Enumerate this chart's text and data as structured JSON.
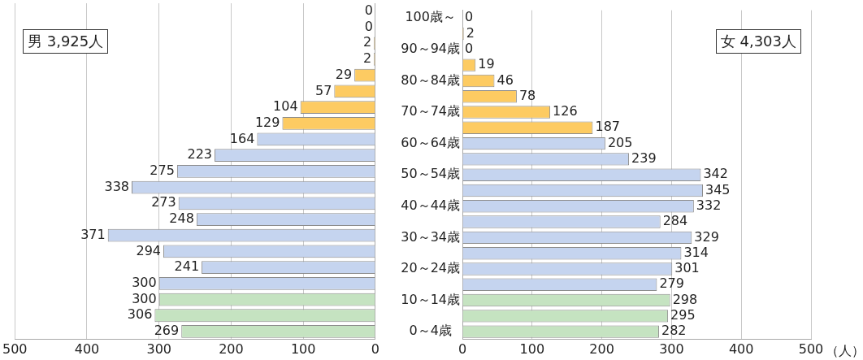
{
  "chart_data": [
    {
      "type": "bar",
      "orientation": "horizontal",
      "title": "男 3,925人",
      "categories": [
        null,
        null,
        null,
        null,
        null,
        null,
        null,
        null,
        null,
        null,
        null,
        null,
        null,
        null,
        null,
        null,
        null,
        null,
        null,
        null,
        null
      ],
      "values": [
        0,
        0,
        2,
        2,
        29,
        57,
        104,
        129,
        164,
        223,
        275,
        338,
        273,
        248,
        371,
        294,
        241,
        300,
        300,
        306,
        269
      ],
      "colors": [
        "#fdcb62",
        "#fdcb62",
        "#fdcb62",
        "#fdcb62",
        "#fdcb62",
        "#fdcb62",
        "#fdcb62",
        "#fdcb62",
        "#c5d4ef",
        "#c5d4ef",
        "#c5d4ef",
        "#c5d4ef",
        "#c5d4ef",
        "#c5d4ef",
        "#c5d4ef",
        "#c5d4ef",
        "#c5d4ef",
        "#c5d4ef",
        "#c5e3c1",
        "#c5e3c1",
        "#c5e3c1"
      ],
      "xlim": [
        500,
        0
      ],
      "xticks": [
        500,
        400,
        300,
        200,
        100,
        0
      ],
      "grid": "x",
      "legend": false,
      "data_labels": true,
      "tick_labels": "x"
    },
    {
      "type": "bar",
      "orientation": "horizontal",
      "title": "女 4,303人",
      "xlabel": "（人）",
      "categories": [
        "100歳～",
        null,
        "90～94歳",
        null,
        "80～84歳",
        null,
        "70～74歳",
        null,
        "60～64歳",
        null,
        "50～54歳",
        null,
        "40～44歳",
        null,
        "30～34歳",
        null,
        "20～24歳",
        null,
        "10～14歳",
        null,
        "0～4歳"
      ],
      "values": [
        0,
        2,
        0,
        19,
        46,
        78,
        126,
        187,
        205,
        239,
        342,
        345,
        332,
        284,
        329,
        314,
        301,
        279,
        298,
        295,
        282
      ],
      "colors": [
        "#fdcb62",
        "#fdcb62",
        "#fdcb62",
        "#fdcb62",
        "#fdcb62",
        "#fdcb62",
        "#fdcb62",
        "#fdcb62",
        "#c5d4ef",
        "#c5d4ef",
        "#c5d4ef",
        "#c5d4ef",
        "#c5d4ef",
        "#c5d4ef",
        "#c5d4ef",
        "#c5d4ef",
        "#c5d4ef",
        "#c5d4ef",
        "#c5e3c1",
        "#c5e3c1",
        "#c5e3c1"
      ],
      "xlim": [
        0,
        500
      ],
      "xticks": [
        0,
        100,
        200,
        300,
        400,
        500
      ],
      "grid": "x",
      "legend": false,
      "data_labels": true
    }
  ]
}
